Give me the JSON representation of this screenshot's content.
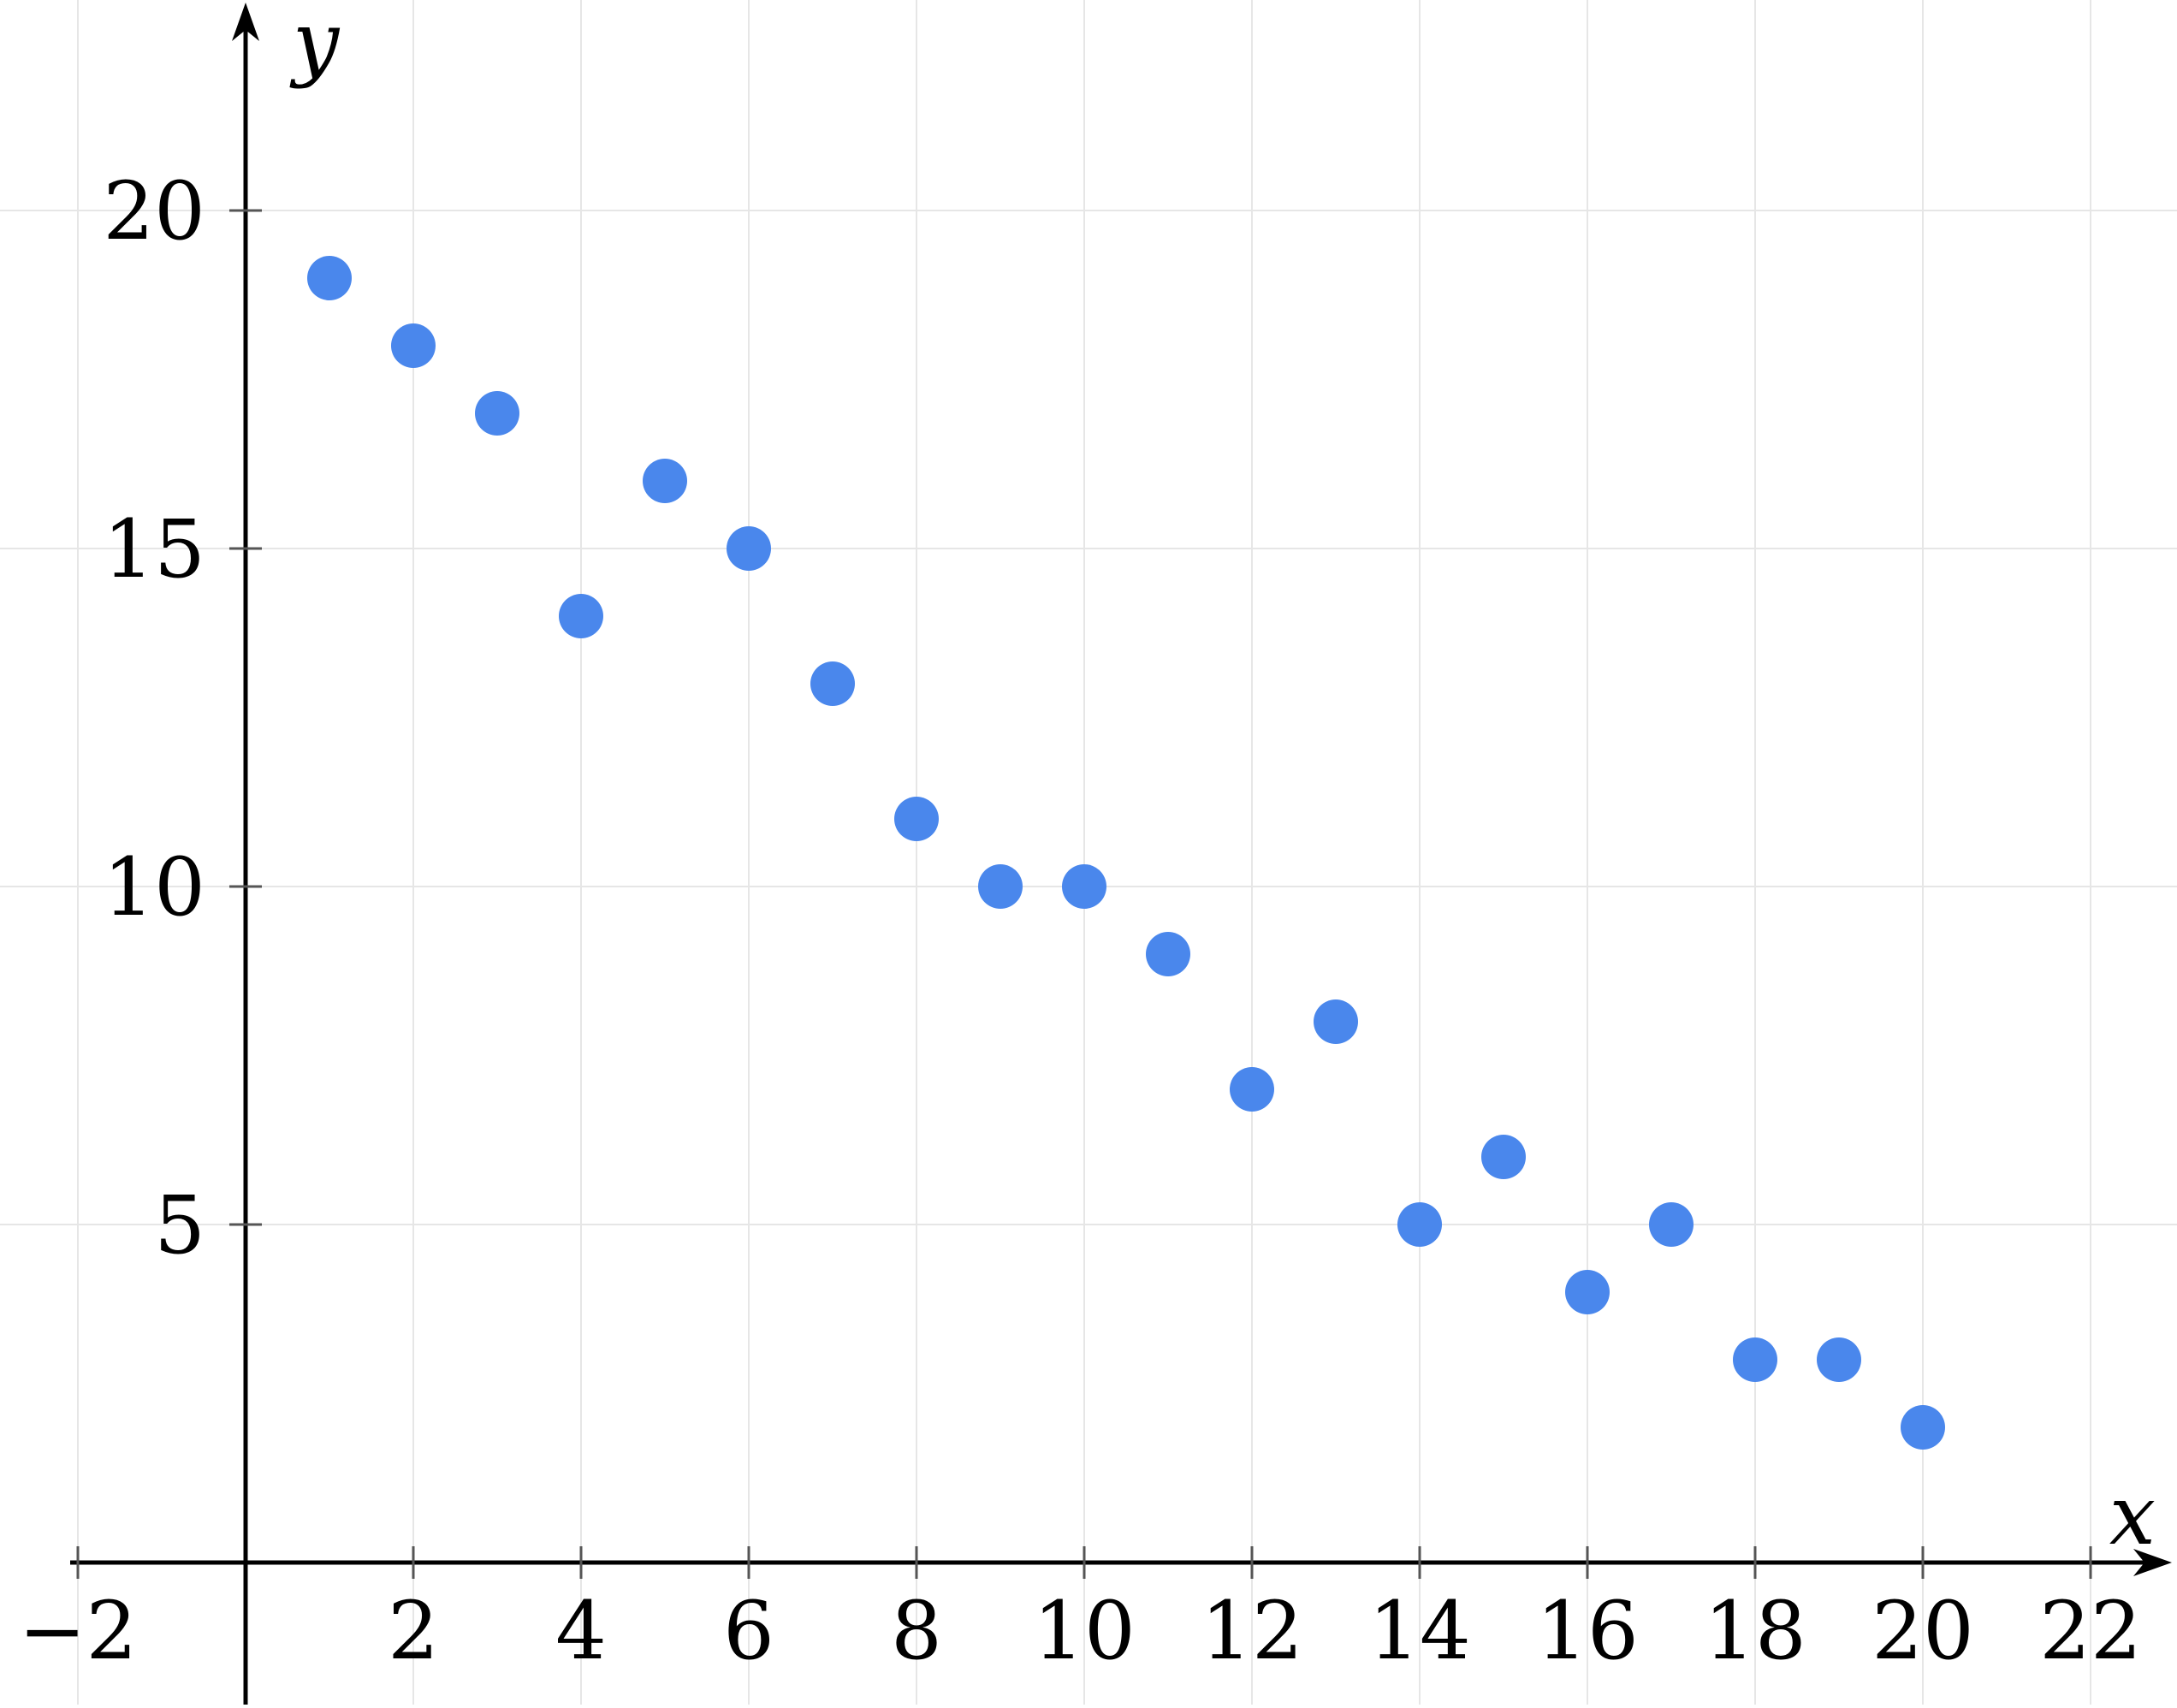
{
  "chart_data": {
    "type": "scatter",
    "title": "",
    "xlabel": "x",
    "ylabel": "y",
    "x_ticks": [
      -2,
      2,
      4,
      6,
      8,
      10,
      12,
      14,
      16,
      18,
      20,
      22
    ],
    "x_tick_labels": [
      "−2",
      "2",
      "4",
      "6",
      "8",
      "10",
      "12",
      "14",
      "16",
      "18",
      "20",
      "22"
    ],
    "y_ticks": [
      5,
      10,
      15,
      20
    ],
    "y_tick_labels": [
      "5",
      "10",
      "15",
      "20"
    ],
    "xlim": [
      -2.9,
      23.0
    ],
    "ylim": [
      -2.1,
      23.1
    ],
    "grid": true,
    "legend": null,
    "points": [
      [
        1,
        19
      ],
      [
        2,
        18
      ],
      [
        3,
        17
      ],
      [
        4,
        14
      ],
      [
        5,
        16
      ],
      [
        6,
        15
      ],
      [
        7,
        13
      ],
      [
        8,
        11
      ],
      [
        9,
        10
      ],
      [
        10,
        10
      ],
      [
        11,
        9
      ],
      [
        12,
        7
      ],
      [
        13,
        8
      ],
      [
        14,
        5
      ],
      [
        15,
        6
      ],
      [
        16,
        4
      ],
      [
        17,
        5
      ],
      [
        18,
        3
      ],
      [
        19,
        3
      ],
      [
        20,
        2
      ]
    ],
    "colors": {
      "point": "#4a87ec",
      "grid": "#e6e6e6",
      "axis": "#000000",
      "tick": "#555555",
      "background": "#ffffff"
    }
  }
}
